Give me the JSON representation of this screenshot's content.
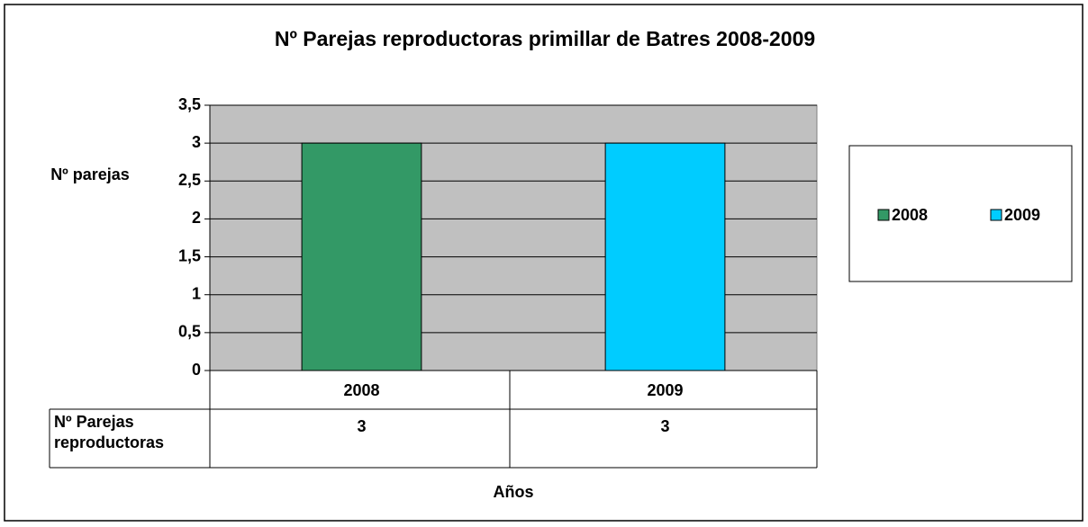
{
  "chart_data": {
    "type": "bar",
    "title": "Nº Parejas reproductoras primillar de Batres 2008-2009",
    "y_label": "Nº parejas",
    "x_label": "Años",
    "categories": [
      "2008",
      "2009"
    ],
    "series": [
      {
        "name": "Nº Parejas reproductoras",
        "values": [
          3,
          3
        ],
        "colors": [
          "#339966",
          "#00ccff"
        ]
      }
    ],
    "ylim": [
      0,
      3.5
    ],
    "yticks": [
      0,
      {
        "value": 0.5,
        "label": "0,5"
      },
      1,
      {
        "value": 1.5,
        "label": "1,5"
      },
      2,
      {
        "value": 2.5,
        "label": "2,5"
      },
      3,
      {
        "value": 3.5,
        "label": "3,5"
      }
    ],
    "grid": true,
    "legend": "right",
    "data_table": true
  }
}
